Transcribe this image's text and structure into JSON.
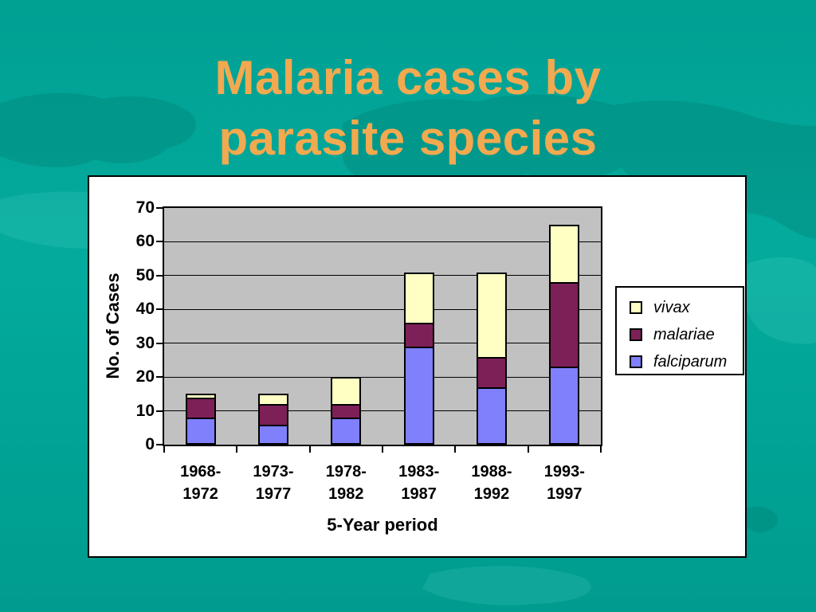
{
  "slide_title": {
    "line1": "Malaria cases by",
    "line2": "parasite species",
    "color": "#F2A94F"
  },
  "background": {
    "color_top": "#00A093",
    "color_mid": "#04AB9D",
    "color_bottom": "#009C8F",
    "watermark": "world-map"
  },
  "chart_data": {
    "type": "bar",
    "stacked": true,
    "title": "",
    "categories": [
      [
        "1968-",
        "1972"
      ],
      [
        "1973-",
        "1977"
      ],
      [
        "1978-",
        "1982"
      ],
      [
        "1983-",
        "1987"
      ],
      [
        "1988-",
        "1992"
      ],
      [
        "1993-",
        "1997"
      ]
    ],
    "series": [
      {
        "name": "falciparum",
        "color": "#8080FC",
        "values": [
          8,
          6,
          8,
          29,
          17,
          23
        ]
      },
      {
        "name": "malariae",
        "color": "#7D2057",
        "values": [
          6,
          6,
          4,
          7,
          9,
          25
        ]
      },
      {
        "name": "vivax",
        "color": "#FFFFC4",
        "values": [
          1,
          3,
          8,
          15,
          25,
          17
        ]
      }
    ],
    "xlabel": "5-Year period",
    "ylabel": "No. of Cases",
    "ylim": [
      0,
      70
    ],
    "ytick_step": 10,
    "ytick_labels": [
      "0",
      "10",
      "20",
      "30",
      "40",
      "50",
      "60",
      "70"
    ],
    "grid": "horizontal",
    "plot_bg_color": "#C1C1C1",
    "chart_bg_color": "#FFFFFF",
    "legend": {
      "position": "right",
      "entries": [
        {
          "label": "vivax",
          "color": "#FFFFC4"
        },
        {
          "label": "malariae",
          "color": "#7D2057"
        },
        {
          "label": "falciparum",
          "color": "#8080FC"
        }
      ]
    }
  }
}
